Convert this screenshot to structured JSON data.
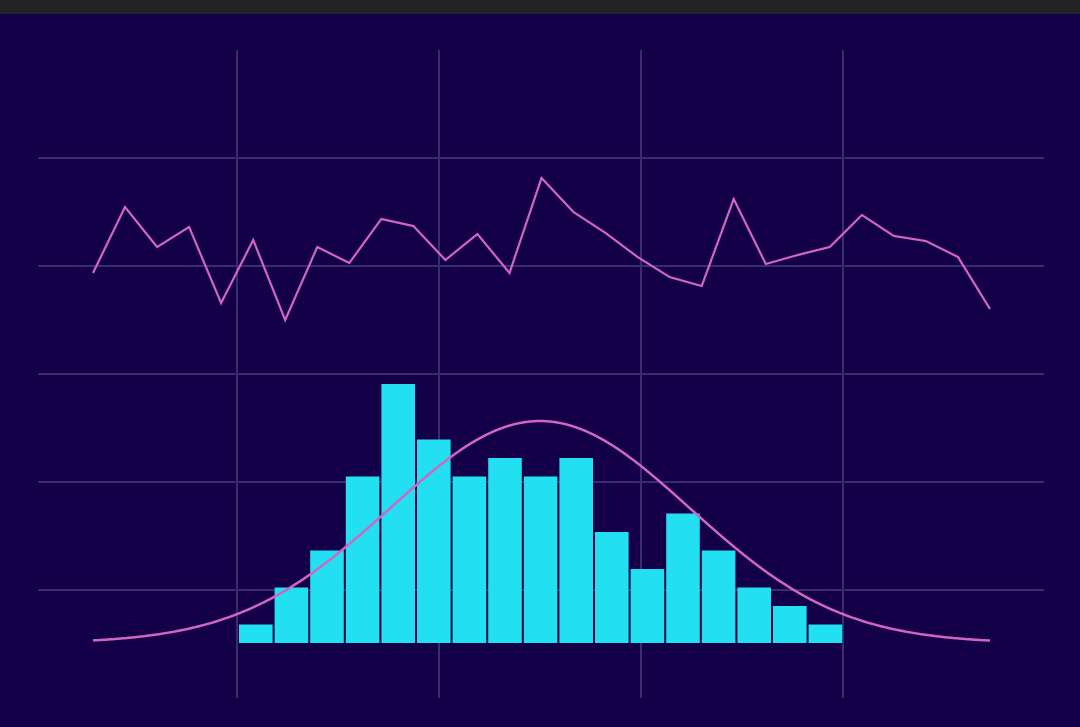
{
  "colors": {
    "background": "#140048",
    "topbar": "#232325",
    "grid": "#3a2d6e",
    "bars": "#22e0f2",
    "line": "#d066c2",
    "curve": "#d066c2"
  },
  "chart_data": [
    {
      "type": "line",
      "grid": true,
      "x": [
        0,
        1,
        2,
        3,
        4,
        5,
        6,
        7,
        8,
        9,
        10,
        11,
        12,
        13,
        14,
        15,
        16,
        17,
        18,
        19,
        20,
        21,
        22,
        23,
        24,
        25,
        26,
        27,
        28
      ],
      "values": [
        0.62,
        1.28,
        0.88,
        1.08,
        0.32,
        0.95,
        0.15,
        0.88,
        0.72,
        1.16,
        1.09,
        0.75,
        1.01,
        0.62,
        1.57,
        1.23,
        1.02,
        0.78,
        0.58,
        0.49,
        1.36,
        0.71,
        0.8,
        0.88,
        1.2,
        0.99,
        0.94,
        0.78,
        0.26
      ]
    },
    {
      "type": "bar",
      "grid": true,
      "categories": [
        "1",
        "2",
        "3",
        "4",
        "5",
        "6",
        "7",
        "8",
        "9",
        "10",
        "11",
        "12",
        "13",
        "14",
        "15",
        "16",
        "17"
      ],
      "values": [
        1,
        3,
        5,
        9,
        14,
        11,
        9,
        10,
        9,
        10,
        6,
        4,
        7,
        5,
        3,
        2,
        1
      ],
      "overlay": {
        "type": "line",
        "name": "",
        "shape": "normal-density-curve",
        "peak": 12
      }
    }
  ]
}
